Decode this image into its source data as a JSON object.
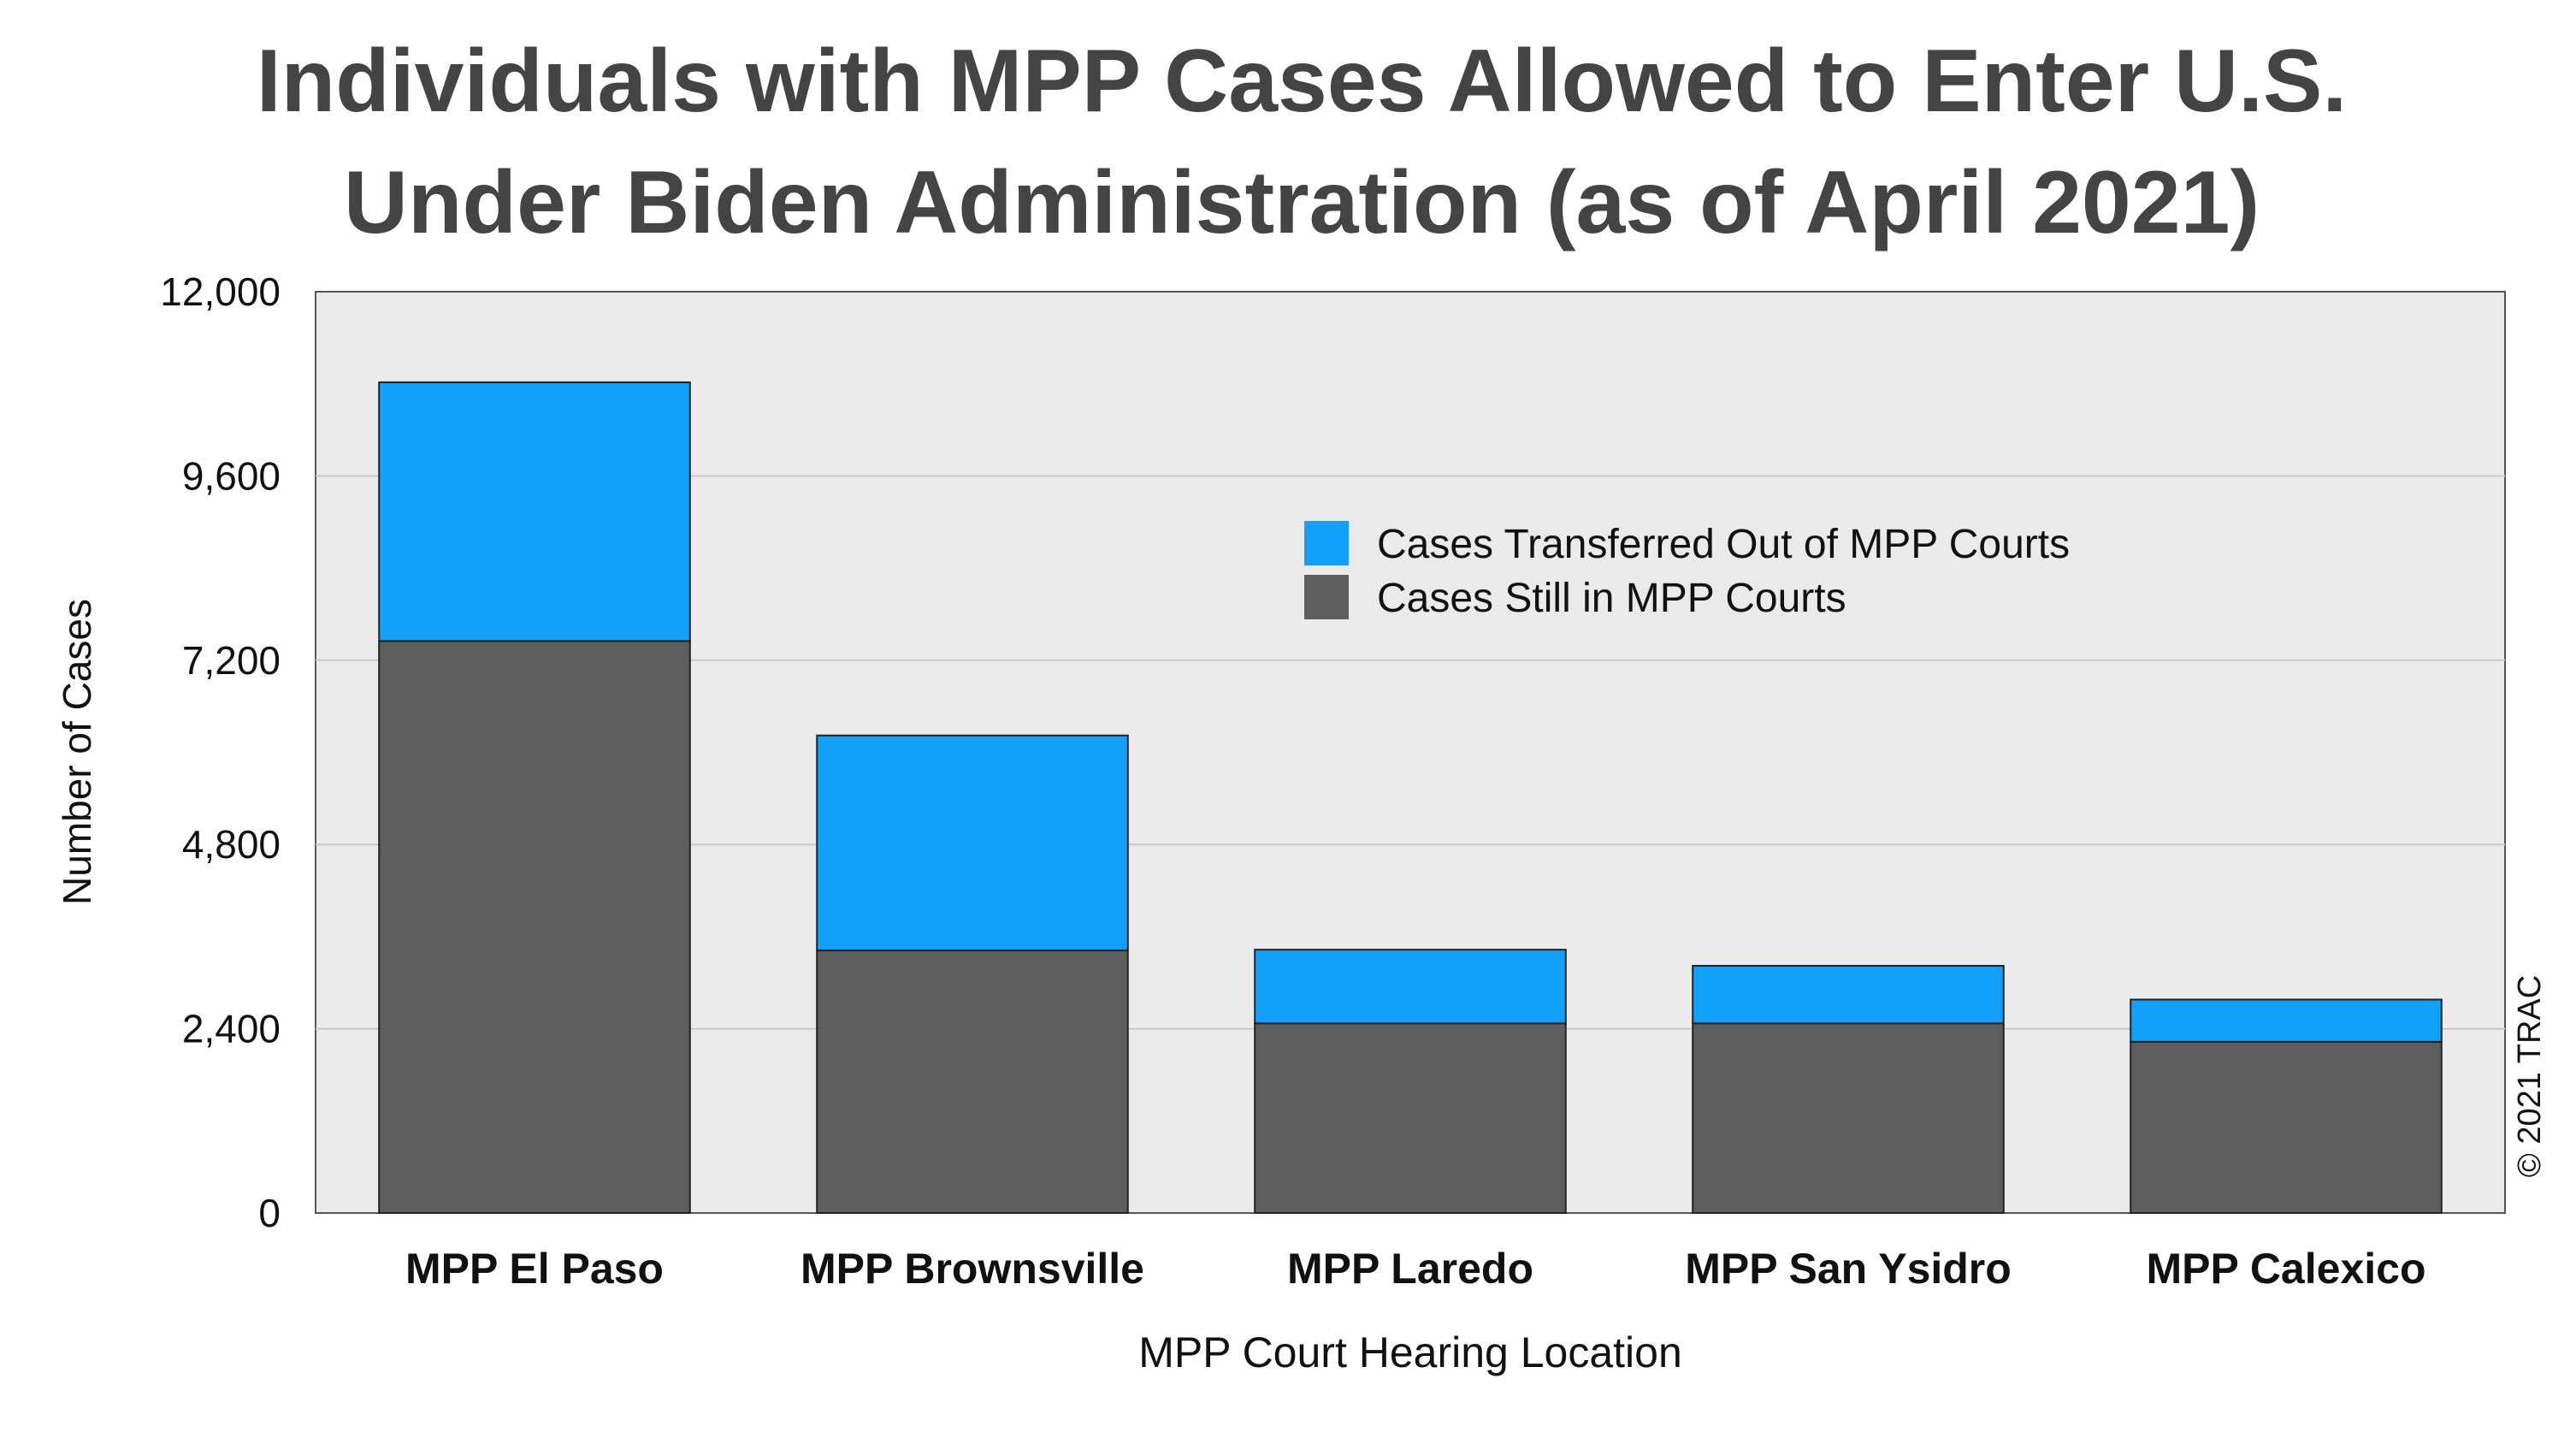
{
  "chart_data": {
    "type": "bar",
    "stacked": true,
    "title": "Individuals with MPP Cases Allowed to Enter U.S.",
    "subtitle": "Under Biden Administration (as of April 2021)",
    "xlabel": "MPP Court Hearing Location",
    "ylabel": "Number of Cases",
    "ylim": [
      0,
      12000
    ],
    "yticks": [
      0,
      2400,
      4800,
      7200,
      9600,
      12000
    ],
    "ytick_labels": [
      "0",
      "2,400",
      "4,800",
      "7,200",
      "9,600",
      "12,000"
    ],
    "categories": [
      "MPP El Paso",
      "MPP Brownsville",
      "MPP Laredo",
      "MPP San Ysidro",
      "MPP Calexico"
    ],
    "series": [
      {
        "name": "Cases Still in MPP Courts",
        "color": "#5e5e5e",
        "values": [
          7450,
          3420,
          2470,
          2470,
          2230
        ]
      },
      {
        "name": "Cases Transferred Out of MPP Courts",
        "color": "#12a0fb",
        "values": [
          3370,
          2800,
          960,
          750,
          550
        ]
      }
    ],
    "legend_order": [
      "Cases Transferred Out of MPP Courts",
      "Cases Still in MPP Courts"
    ],
    "legend_position": "top-right",
    "grid": true,
    "plot_background": "#eaeaea",
    "copyright": "© 2021 TRAC"
  }
}
